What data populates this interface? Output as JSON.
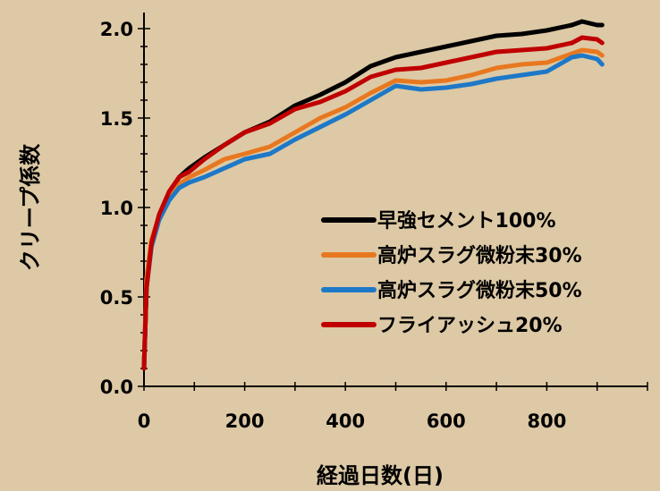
{
  "chart_data": {
    "type": "line",
    "title": "",
    "xlabel": "経過日数(日)",
    "ylabel": "クリープ係数",
    "xlim": [
      0,
      1000
    ],
    "ylim": [
      0,
      2.0
    ],
    "xticks": [
      "0",
      "200",
      "400",
      "600",
      "800"
    ],
    "yticks": [
      "0.0",
      "0.5",
      "1.0",
      "1.5",
      "2.0"
    ],
    "legend_position": "center-right",
    "grid": false,
    "series": [
      {
        "name": "早強セメント100%",
        "color": "#000000",
        "x": [
          0,
          5,
          15,
          30,
          50,
          70,
          90,
          120,
          160,
          200,
          250,
          300,
          350,
          400,
          450,
          500,
          550,
          600,
          650,
          700,
          750,
          800,
          850,
          870,
          900,
          910
        ],
        "y": [
          0.1,
          0.55,
          0.8,
          0.95,
          1.08,
          1.17,
          1.22,
          1.28,
          1.35,
          1.42,
          1.48,
          1.57,
          1.63,
          1.7,
          1.79,
          1.84,
          1.87,
          1.9,
          1.93,
          1.96,
          1.97,
          1.99,
          2.02,
          2.04,
          2.02,
          2.02
        ]
      },
      {
        "name": "高炉スラグ微粉末30%",
        "color": "#e87820",
        "x": [
          0,
          5,
          15,
          30,
          50,
          70,
          90,
          120,
          160,
          200,
          250,
          300,
          350,
          400,
          450,
          500,
          550,
          600,
          650,
          700,
          750,
          800,
          850,
          870,
          900,
          910
        ],
        "y": [
          0.1,
          0.6,
          0.82,
          0.95,
          1.06,
          1.13,
          1.17,
          1.21,
          1.27,
          1.3,
          1.34,
          1.42,
          1.5,
          1.56,
          1.64,
          1.71,
          1.7,
          1.71,
          1.74,
          1.78,
          1.8,
          1.81,
          1.86,
          1.88,
          1.87,
          1.85
        ]
      },
      {
        "name": "高炉スラグ微粉末50%",
        "color": "#1e78c8",
        "x": [
          0,
          5,
          15,
          30,
          50,
          70,
          90,
          120,
          160,
          200,
          250,
          300,
          350,
          400,
          450,
          500,
          550,
          600,
          650,
          700,
          750,
          800,
          850,
          870,
          900,
          910
        ],
        "y": [
          0.1,
          0.55,
          0.78,
          0.93,
          1.04,
          1.11,
          1.14,
          1.17,
          1.22,
          1.27,
          1.3,
          1.38,
          1.45,
          1.52,
          1.6,
          1.68,
          1.66,
          1.67,
          1.69,
          1.72,
          1.74,
          1.76,
          1.84,
          1.85,
          1.83,
          1.8
        ]
      },
      {
        "name": "フライアッシュ20%",
        "color": "#c00000",
        "x": [
          0,
          5,
          15,
          30,
          50,
          70,
          90,
          120,
          160,
          200,
          250,
          300,
          350,
          400,
          450,
          500,
          550,
          600,
          650,
          700,
          750,
          800,
          850,
          870,
          900,
          910
        ],
        "y": [
          0.1,
          0.55,
          0.8,
          0.96,
          1.09,
          1.17,
          1.2,
          1.27,
          1.35,
          1.42,
          1.47,
          1.55,
          1.59,
          1.65,
          1.73,
          1.77,
          1.78,
          1.81,
          1.84,
          1.87,
          1.88,
          1.89,
          1.92,
          1.95,
          1.94,
          1.92
        ]
      }
    ]
  }
}
